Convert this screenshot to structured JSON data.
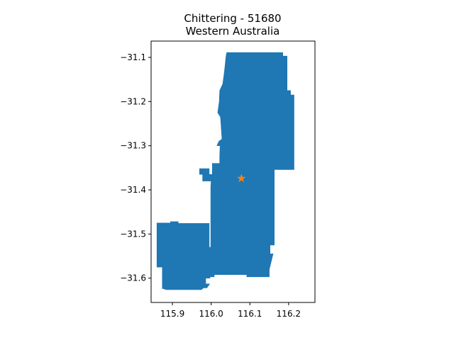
{
  "title": {
    "line1": "Chittering - 51680",
    "line2": "Western Australia"
  },
  "colors": {
    "region_fill": "#1f77b4",
    "marker": "#ff7f0e"
  },
  "map": {
    "region_name": "Chittering",
    "xlim": [
      115.845,
      116.268
    ],
    "ylim": [
      -31.655,
      -31.063
    ],
    "x_ticks": [
      {
        "value": 115.9,
        "label": "115.9"
      },
      {
        "value": 116.0,
        "label": "116.0"
      },
      {
        "value": 116.1,
        "label": "116.1"
      },
      {
        "value": 116.2,
        "label": "116.2"
      }
    ],
    "y_ticks": [
      {
        "value": -31.1,
        "label": "−31.1"
      },
      {
        "value": -31.2,
        "label": "−31.2"
      },
      {
        "value": -31.3,
        "label": "−31.3"
      },
      {
        "value": -31.4,
        "label": "−31.4"
      },
      {
        "value": -31.5,
        "label": "−31.5"
      },
      {
        "value": -31.6,
        "label": "−31.6"
      }
    ],
    "marker": {
      "lon": 116.078,
      "lat": -31.374,
      "symbol": "star"
    },
    "boundary": [
      [
        116.04,
        -31.089
      ],
      [
        116.185,
        -31.089
      ],
      [
        116.185,
        -31.097
      ],
      [
        116.196,
        -31.097
      ],
      [
        116.196,
        -31.175
      ],
      [
        116.205,
        -31.175
      ],
      [
        116.205,
        -31.185
      ],
      [
        116.214,
        -31.185
      ],
      [
        116.214,
        -31.354
      ],
      [
        116.163,
        -31.354
      ],
      [
        116.163,
        -31.525
      ],
      [
        116.152,
        -31.525
      ],
      [
        116.152,
        -31.545
      ],
      [
        116.16,
        -31.545
      ],
      [
        116.15,
        -31.58
      ],
      [
        116.15,
        -31.597
      ],
      [
        116.092,
        -31.597
      ],
      [
        116.092,
        -31.592
      ],
      [
        116.008,
        -31.592
      ],
      [
        116.008,
        -31.597
      ],
      [
        115.997,
        -31.597
      ],
      [
        115.997,
        -31.6
      ],
      [
        115.986,
        -31.6
      ],
      [
        115.986,
        -31.613
      ],
      [
        115.996,
        -31.613
      ],
      [
        115.989,
        -31.622
      ],
      [
        115.98,
        -31.622
      ],
      [
        115.975,
        -31.626
      ],
      [
        115.884,
        -31.626
      ],
      [
        115.874,
        -31.623
      ],
      [
        115.874,
        -31.575
      ],
      [
        115.86,
        -31.575
      ],
      [
        115.86,
        -31.475
      ],
      [
        115.895,
        -31.475
      ],
      [
        115.895,
        -31.472
      ],
      [
        115.915,
        -31.472
      ],
      [
        115.915,
        -31.476
      ],
      [
        115.995,
        -31.476
      ],
      [
        115.995,
        -31.53
      ],
      [
        115.999,
        -31.53
      ],
      [
        115.999,
        -31.395
      ],
      [
        116.0,
        -31.38
      ],
      [
        115.978,
        -31.38
      ],
      [
        115.978,
        -31.365
      ],
      [
        115.97,
        -31.365
      ],
      [
        115.97,
        -31.352
      ],
      [
        115.995,
        -31.352
      ],
      [
        115.995,
        -31.365
      ],
      [
        116.003,
        -31.365
      ],
      [
        116.003,
        -31.34
      ],
      [
        116.022,
        -31.34
      ],
      [
        116.022,
        -31.325
      ],
      [
        116.023,
        -31.3
      ],
      [
        116.015,
        -31.3
      ],
      [
        116.02,
        -31.29
      ],
      [
        116.028,
        -31.285
      ],
      [
        116.024,
        -31.235
      ],
      [
        116.017,
        -31.225
      ],
      [
        116.021,
        -31.2
      ],
      [
        116.022,
        -31.175
      ],
      [
        116.03,
        -31.16
      ],
      [
        116.033,
        -31.14
      ],
      [
        116.036,
        -31.118
      ],
      [
        116.038,
        -31.1
      ]
    ]
  }
}
